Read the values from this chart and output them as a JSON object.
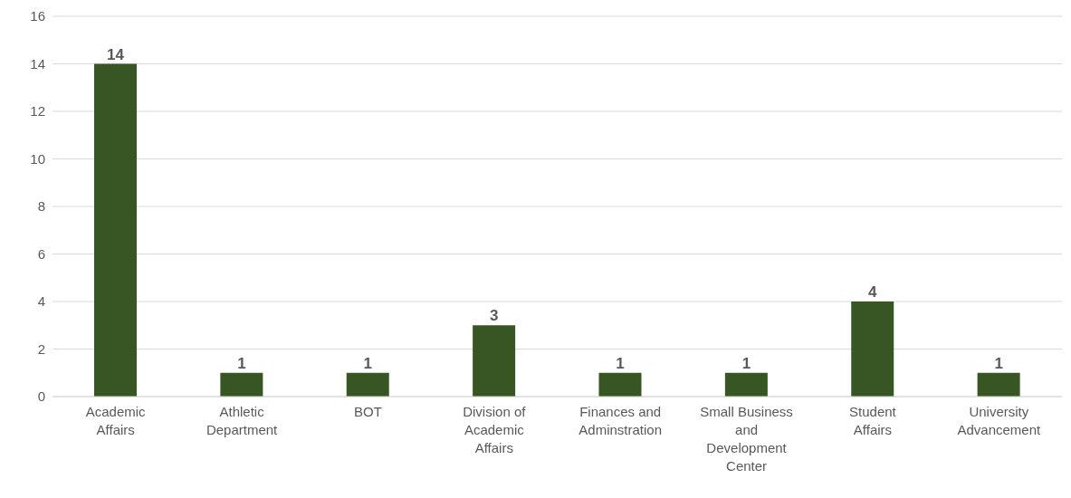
{
  "chart_data": {
    "type": "bar",
    "categories": [
      "Academic Affairs",
      "Athletic Department",
      "BOT",
      "Division of Academic Affairs",
      "Finances and Adminstration",
      "Small Business and Development Center",
      "Student Affairs",
      "University Advancement"
    ],
    "values": [
      14,
      1,
      1,
      3,
      1,
      1,
      4,
      1
    ],
    "color": "#375623",
    "ylim": [
      0,
      16
    ],
    "yticks": [
      0,
      2,
      4,
      6,
      8,
      10,
      12,
      14,
      16
    ],
    "grid": "y",
    "data_labels": true
  }
}
